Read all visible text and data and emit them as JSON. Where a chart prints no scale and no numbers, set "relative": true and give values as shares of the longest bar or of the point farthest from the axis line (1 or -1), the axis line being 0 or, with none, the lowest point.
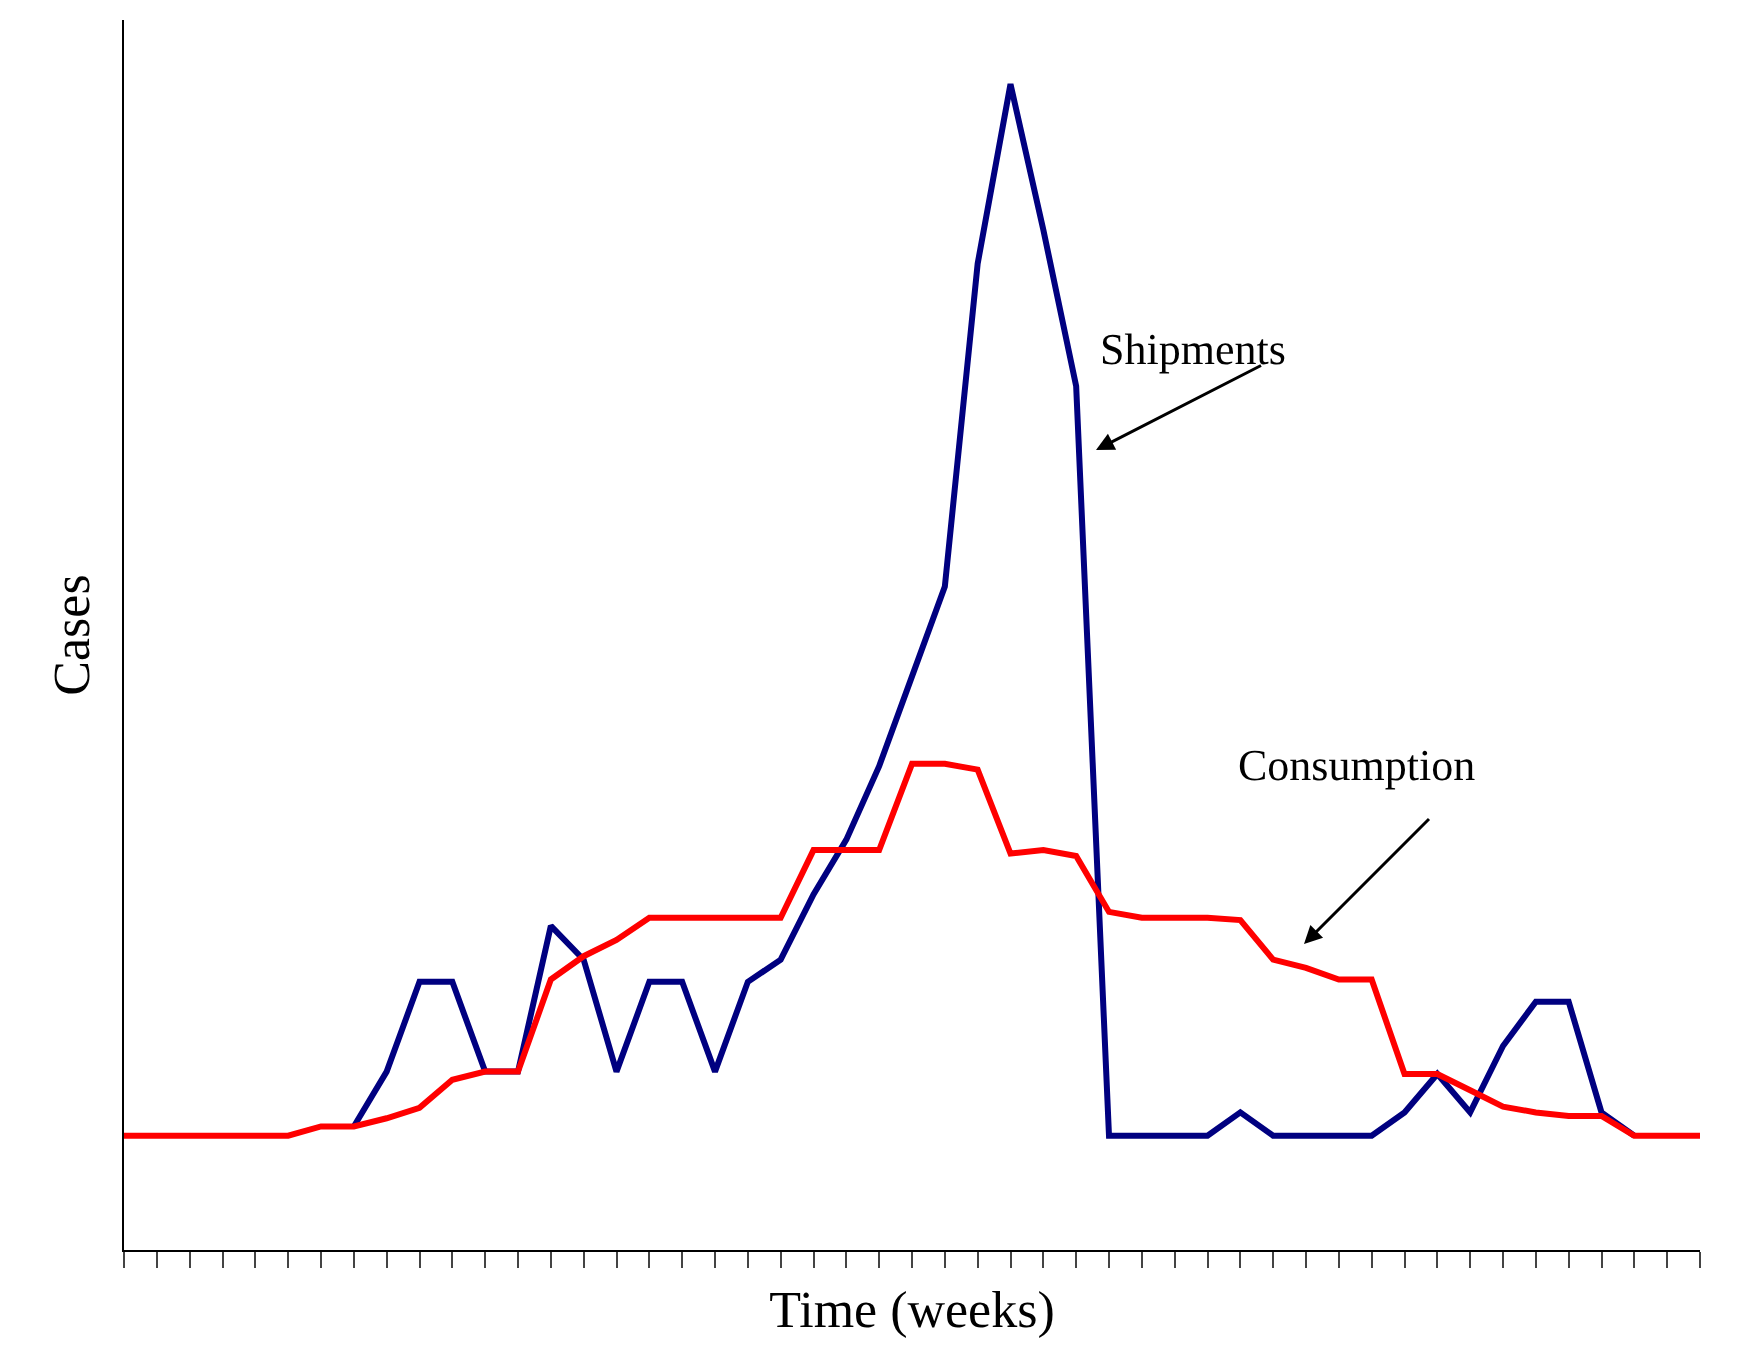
{
  "chart_data": {
    "type": "line",
    "relative": true,
    "xlabel": "Time (weeks)",
    "ylabel": "Cases",
    "categories": [
      null,
      null,
      null,
      null,
      null,
      null,
      null,
      null,
      null,
      null,
      null,
      null,
      null,
      null,
      null,
      null,
      null,
      null,
      null,
      null,
      null,
      null,
      null,
      null,
      null,
      null,
      null,
      null,
      null,
      null,
      null,
      null,
      null,
      null,
      null,
      null,
      null,
      null,
      null,
      null,
      null,
      null,
      null,
      null,
      null,
      null,
      null,
      null,
      null
    ],
    "series": [
      {
        "name": "Shipments",
        "color": "#000080",
        "values": [
          null,
          null,
          null,
          null,
          null,
          null,
          null,
          0.106,
          0.153,
          0.23,
          0.23,
          0.153,
          0.153,
          0.278,
          0.249,
          0.153,
          0.23,
          0.23,
          0.153,
          0.23,
          0.249,
          0.305,
          0.352,
          0.415,
          0.492,
          0.569,
          0.846,
          1,
          0.875,
          0.741,
          0.098,
          0.098,
          0.098,
          0.098,
          0.118,
          0.098,
          0.098,
          0.098,
          0.098,
          0.118,
          0.151,
          0.118,
          0.175,
          0.213,
          0.213,
          0.118,
          0.098,
          null,
          null
        ]
      },
      {
        "name": "Consumption",
        "color": "#ff0000",
        "values": [
          0.098,
          0.098,
          0.098,
          0.098,
          0.098,
          0.098,
          0.106,
          0.106,
          0.113,
          0.122,
          0.146,
          0.153,
          0.153,
          0.232,
          0.252,
          0.266,
          0.285,
          0.285,
          0.285,
          0.285,
          0.285,
          0.343,
          0.343,
          0.343,
          0.417,
          0.417,
          0.412,
          0.34,
          0.343,
          0.338,
          0.29,
          0.285,
          0.285,
          0.285,
          0.283,
          0.249,
          0.242,
          0.232,
          0.232,
          0.151,
          0.151,
          0.137,
          0.123,
          0.118,
          0.115,
          0.115,
          0.098,
          0.098,
          0.098
        ]
      }
    ],
    "legend": false,
    "marker": "none",
    "line_style": "solid"
  }
}
